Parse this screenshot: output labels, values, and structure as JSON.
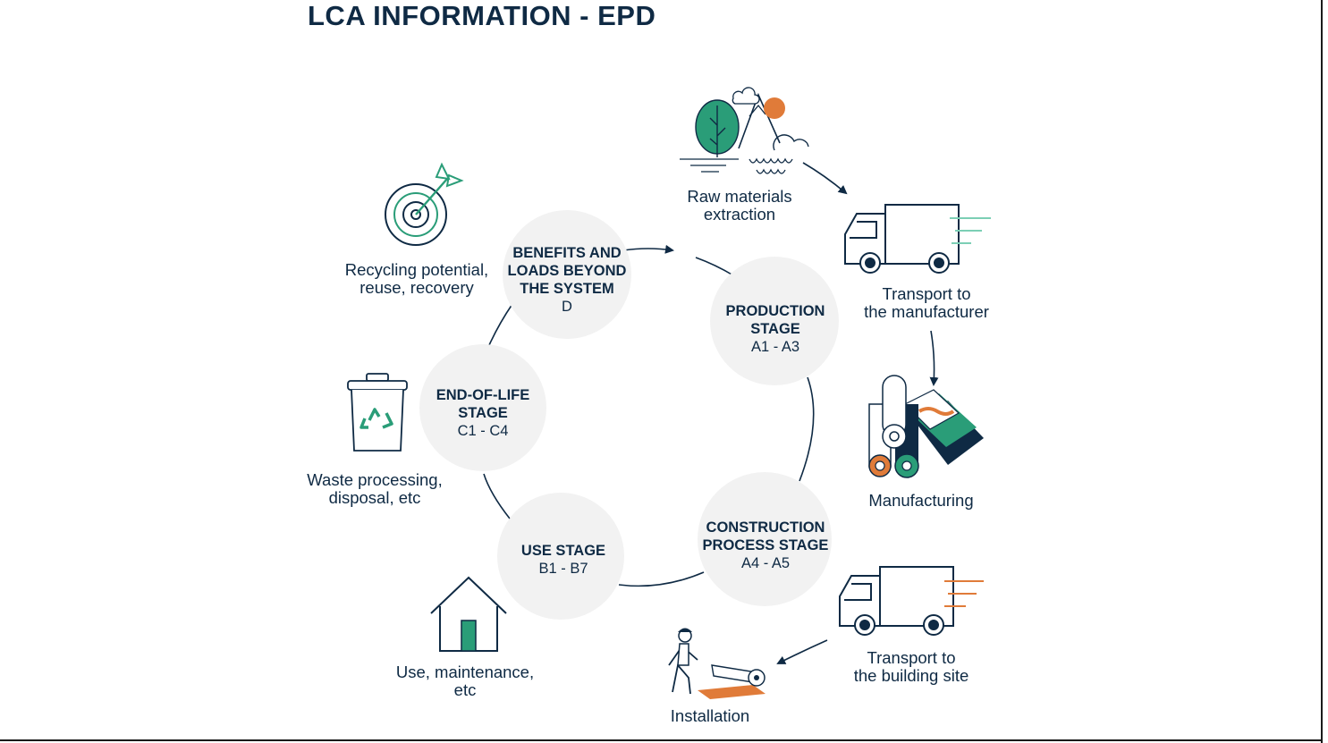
{
  "title": "LCA INFORMATION - EPD",
  "colors": {
    "navy": "#0f2a44",
    "green": "#2a9d78",
    "light_green": "#7ccfb5",
    "orange": "#e07b39",
    "circle_bg": "#f2f2f2"
  },
  "stages": [
    {
      "title_lines": [
        "BENEFITS AND",
        "LOADS BEYOND",
        "THE SYSTEM"
      ],
      "code": "D"
    },
    {
      "title_lines": [
        "PRODUCTION",
        "STAGE"
      ],
      "code": "A1 - A3"
    },
    {
      "title_lines": [
        "CONSTRUCTION",
        "PROCESS STAGE"
      ],
      "code": "A4 -  A5"
    },
    {
      "title_lines": [
        "USE STAGE"
      ],
      "code": "B1 - B7"
    },
    {
      "title_lines": [
        "END-OF-LIFE",
        "STAGE"
      ],
      "code": "C1 - C4"
    }
  ],
  "steps": [
    {
      "lines": [
        "Raw materials",
        "extraction"
      ],
      "icon": "mountain-tree-icon"
    },
    {
      "lines": [
        "Transport to",
        "the manufacturer"
      ],
      "icon": "truck-icon"
    },
    {
      "lines": [
        "Manufacturing"
      ],
      "icon": "rolls-icon"
    },
    {
      "lines": [
        "Transport to",
        "the building site"
      ],
      "icon": "truck-icon"
    },
    {
      "lines": [
        "Installation"
      ],
      "icon": "worker-roll-icon"
    },
    {
      "lines": [
        "Use, maintenance,",
        "etc"
      ],
      "icon": "house-icon"
    },
    {
      "lines": [
        "Waste processing,",
        "disposal, etc"
      ],
      "icon": "recycle-bin-icon"
    },
    {
      "lines": [
        "Recycling potential,",
        "reuse, recovery"
      ],
      "icon": "target-icon"
    }
  ]
}
